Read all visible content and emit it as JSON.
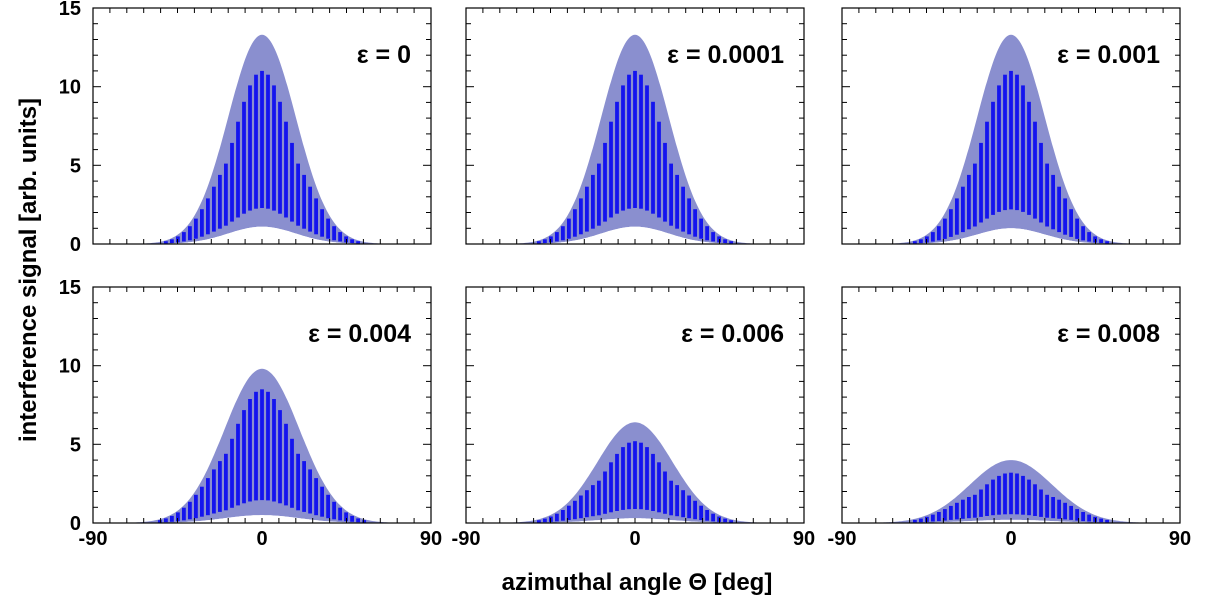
{
  "figure": {
    "ylabel": "interference signal [arb. units]",
    "xlabel": "azimuthal angle Θ [deg]",
    "colors": {
      "envelope": "#8a8fcf",
      "fringes": "#1414ee",
      "frame": "#000000",
      "background": "#ffffff"
    }
  },
  "chart_data": [
    {
      "type": "area",
      "panel": "top-left",
      "epsilon_label": "ε = 0",
      "x": [
        -90,
        90
      ],
      "xlim": [
        -90,
        90
      ],
      "ylim": [
        0,
        15
      ],
      "xticklabels": [],
      "yticklabels": [
        "0",
        "5",
        "10",
        "15"
      ],
      "series": [
        {
          "name": "upper envelope",
          "peak": 13.3,
          "center": 0,
          "sigma": 18
        },
        {
          "name": "fringe maxima",
          "peak": 11.0,
          "center": 0,
          "sigma": 18
        },
        {
          "name": "lower envelope",
          "peak": 1.1,
          "center": 0,
          "sigma": 18
        }
      ]
    },
    {
      "type": "area",
      "panel": "top-middle",
      "epsilon_label": "ε = 0.0001",
      "x": [
        -90,
        90
      ],
      "xlim": [
        -90,
        90
      ],
      "ylim": [
        0,
        15
      ],
      "xticklabels": [],
      "yticklabels": [],
      "series": [
        {
          "name": "upper envelope",
          "peak": 13.3,
          "center": 0,
          "sigma": 18
        },
        {
          "name": "fringe maxima",
          "peak": 11.0,
          "center": 0,
          "sigma": 18
        },
        {
          "name": "lower envelope",
          "peak": 1.1,
          "center": 0,
          "sigma": 18
        }
      ]
    },
    {
      "type": "area",
      "panel": "top-right",
      "epsilon_label": "ε = 0.001",
      "x": [
        -90,
        90
      ],
      "xlim": [
        -90,
        90
      ],
      "ylim": [
        0,
        15
      ],
      "xticklabels": [],
      "yticklabels": [],
      "series": [
        {
          "name": "upper envelope",
          "peak": 13.3,
          "center": 0,
          "sigma": 18
        },
        {
          "name": "fringe maxima",
          "peak": 11.0,
          "center": 0,
          "sigma": 18
        },
        {
          "name": "lower envelope",
          "peak": 1.0,
          "center": 0,
          "sigma": 18
        }
      ]
    },
    {
      "type": "area",
      "panel": "bottom-left",
      "epsilon_label": "ε = 0.004",
      "x": [
        -90,
        90
      ],
      "xlim": [
        -90,
        90
      ],
      "ylim": [
        0,
        15
      ],
      "xticklabels": [
        "-90",
        "0",
        "90"
      ],
      "yticklabels": [
        "0",
        "5",
        "10",
        "15"
      ],
      "series": [
        {
          "name": "upper envelope",
          "peak": 9.8,
          "center": 0,
          "sigma": 20
        },
        {
          "name": "fringe maxima",
          "peak": 8.5,
          "center": 0,
          "sigma": 20
        },
        {
          "name": "lower envelope",
          "peak": 0.5,
          "center": 0,
          "sigma": 20
        }
      ]
    },
    {
      "type": "area",
      "panel": "bottom-middle",
      "epsilon_label": "ε = 0.006",
      "x": [
        -90,
        90
      ],
      "xlim": [
        -90,
        90
      ],
      "ylim": [
        0,
        15
      ],
      "xticklabels": [
        "-90",
        "0",
        "90"
      ],
      "yticklabels": [],
      "series": [
        {
          "name": "upper envelope",
          "peak": 6.4,
          "center": 0,
          "sigma": 20
        },
        {
          "name": "fringe maxima",
          "peak": 5.2,
          "center": 0,
          "sigma": 20
        },
        {
          "name": "lower envelope",
          "peak": 0.3,
          "center": 0,
          "sigma": 20
        }
      ]
    },
    {
      "type": "area",
      "panel": "bottom-right",
      "epsilon_label": "ε = 0.008",
      "x": [
        -90,
        90
      ],
      "xlim": [
        -90,
        90
      ],
      "ylim": [
        0,
        15
      ],
      "xticklabels": [
        "-90",
        "0",
        "90"
      ],
      "yticklabels": [],
      "series": [
        {
          "name": "upper envelope",
          "peak": 4.0,
          "center": 0,
          "sigma": 22
        },
        {
          "name": "fringe maxima",
          "peak": 3.2,
          "center": 0,
          "sigma": 22
        },
        {
          "name": "lower envelope",
          "peak": 0.2,
          "center": 0,
          "sigma": 22
        }
      ]
    }
  ]
}
